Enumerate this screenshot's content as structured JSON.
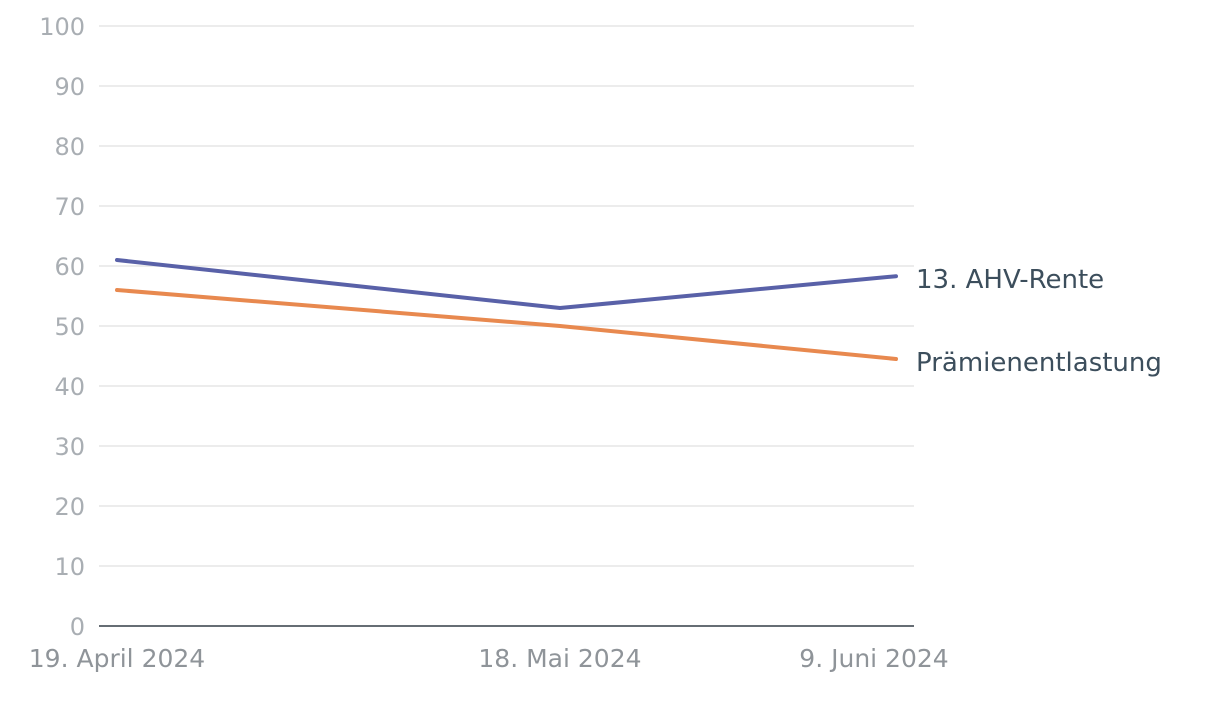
{
  "chart_data": {
    "type": "line",
    "x": [
      "19. April 2024",
      "18. Mai 2024",
      "9. Juni 2024"
    ],
    "x_dates": [
      "2024-04-19",
      "2024-05-18",
      "2024-06-09"
    ],
    "series": [
      {
        "name": "13. AHV-Rente",
        "values": [
          61,
          53,
          58.3
        ],
        "color": "#5961a8"
      },
      {
        "name": "Prämienentlastung",
        "values": [
          56,
          50,
          44.5
        ],
        "color": "#e8894f"
      }
    ],
    "title": "",
    "xlabel": "",
    "ylabel": "",
    "ylim": [
      0,
      100
    ],
    "yticks": [
      0,
      10,
      20,
      30,
      40,
      50,
      60,
      70,
      80,
      90,
      100
    ],
    "grid": true,
    "legend": "end-of-line labels, right"
  }
}
